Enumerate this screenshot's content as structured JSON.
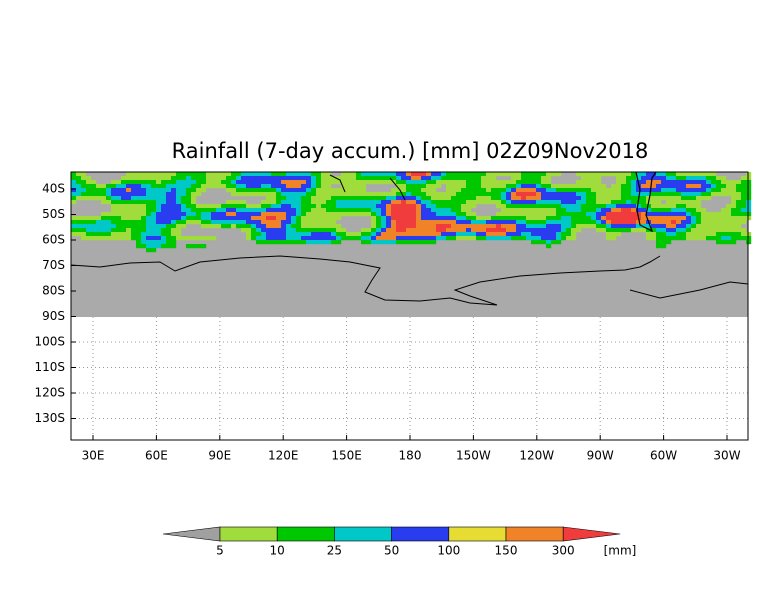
{
  "title": "Rainfall (7-day accum.) [mm] 02Z09Nov2018",
  "map": {
    "lat_labels": [
      "40S",
      "50S",
      "60S",
      "70S",
      "80S",
      "90S",
      "100S",
      "110S",
      "120S",
      "130S"
    ],
    "lon_labels": [
      "30E",
      "60E",
      "90E",
      "120E",
      "150E",
      "180",
      "150W",
      "120W",
      "90W",
      "60W",
      "30W"
    ]
  },
  "colorbar": {
    "levels": [
      5,
      10,
      25,
      50,
      100,
      150,
      300
    ],
    "colors": [
      "#a0a0a0",
      "#a0dc3c",
      "#00c800",
      "#00c8c8",
      "#2a3cf0",
      "#e6dc32",
      "#f08228",
      "#f03c3c"
    ],
    "unit": "[mm]"
  }
}
